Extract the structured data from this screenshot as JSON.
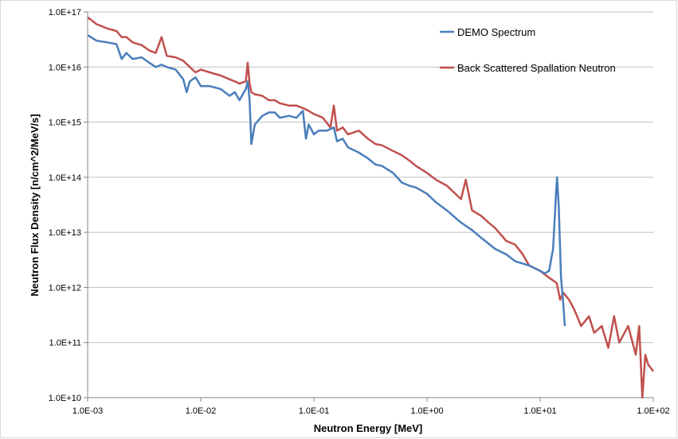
{
  "chart_data": {
    "type": "line",
    "title": "",
    "xlabel": "Neutron Energy [MeV]",
    "ylabel": "Neutron Flux Density [n/cm^2/MeV/s]",
    "x_scale": "log",
    "y_scale": "log",
    "xlim": [
      0.001,
      100
    ],
    "ylim": [
      10000000000.0,
      1e+17
    ],
    "x_tick_labels": [
      "1.0E-03",
      "1.0E-02",
      "1.0E-01",
      "1.0E+00",
      "1.0E+01",
      "1.0E+02"
    ],
    "y_tick_labels": [
      "1.0E+10",
      "1.0E+11",
      "1.0E+12",
      "1.0E+13",
      "1.0E+14",
      "1.0E+15",
      "1.0E+16",
      "1.0E+17"
    ],
    "grid": "horizontal major",
    "legend_position": "top-right",
    "series": [
      {
        "name": "DEMO Spectrum",
        "color": "#4a7ebb",
        "x": [
          0.001,
          0.0012,
          0.0015,
          0.0018,
          0.002,
          0.0022,
          0.0025,
          0.003,
          0.0035,
          0.004,
          0.0045,
          0.005,
          0.006,
          0.007,
          0.0075,
          0.008,
          0.009,
          0.01,
          0.012,
          0.015,
          0.018,
          0.02,
          0.022,
          0.025,
          0.026,
          0.027,
          0.028,
          0.03,
          0.035,
          0.04,
          0.045,
          0.05,
          0.06,
          0.07,
          0.08,
          0.085,
          0.09,
          0.1,
          0.11,
          0.13,
          0.15,
          0.16,
          0.18,
          0.2,
          0.25,
          0.3,
          0.35,
          0.4,
          0.5,
          0.6,
          0.7,
          0.8,
          1.0,
          1.2,
          1.5,
          2.0,
          2.5,
          3.0,
          4.0,
          5.0,
          6.0,
          8.0,
          10.0,
          11.0,
          12.0,
          13.0,
          13.8,
          14.1,
          14.6,
          15.3,
          16.0,
          16.5
        ],
        "values": [
          3.8e+16,
          3e+16,
          2.8e+16,
          2.6e+16,
          1.4e+16,
          1.8e+16,
          1.4e+16,
          1.5e+16,
          1.2e+16,
          1e+16,
          1.1e+16,
          1e+16,
          9000000000000000.0,
          6000000000000000.0,
          3500000000000000.0,
          5500000000000000.0,
          6500000000000000.0,
          4500000000000000.0,
          4500000000000000.0,
          4000000000000000.0,
          3000000000000000.0,
          3500000000000000.0,
          2500000000000000.0,
          4000000000000000.0,
          5500000000000000.0,
          2500000000000000.0,
          400000000000000.0,
          900000000000000.0,
          1300000000000000.0,
          1500000000000000.0,
          1500000000000000.0,
          1200000000000000.0,
          1300000000000000.0,
          1200000000000000.0,
          1600000000000000.0,
          500000000000000.0,
          900000000000000.0,
          600000000000000.0,
          700000000000000.0,
          700000000000000.0,
          800000000000000.0,
          450000000000000.0,
          500000000000000.0,
          350000000000000.0,
          280000000000000.0,
          220000000000000.0,
          170000000000000.0,
          160000000000000.0,
          120000000000000.0,
          80000000000000.0,
          70000000000000.0,
          65000000000000.0,
          50000000000000.0,
          35000000000000.0,
          25000000000000.0,
          15000000000000.0,
          11000000000000.0,
          8000000000000.0,
          5000000000000.0,
          4000000000000.0,
          3000000000000.0,
          2500000000000.0,
          2000000000000.0,
          1800000000000.0,
          2000000000000.0,
          5000000000000.0,
          50000000000000.0,
          100000000000000.0,
          30000000000000.0,
          1500000000000.0,
          500000000000.0,
          200000000000.0
        ]
      },
      {
        "name": "Back Scattered Spallation Neutron",
        "color": "#c0504d",
        "x": [
          0.001,
          0.0012,
          0.0015,
          0.0018,
          0.002,
          0.0022,
          0.0025,
          0.003,
          0.0035,
          0.004,
          0.0045,
          0.005,
          0.006,
          0.007,
          0.008,
          0.009,
          0.01,
          0.012,
          0.015,
          0.018,
          0.02,
          0.022,
          0.025,
          0.026,
          0.027,
          0.028,
          0.03,
          0.035,
          0.04,
          0.045,
          0.05,
          0.06,
          0.07,
          0.08,
          0.09,
          0.1,
          0.11,
          0.12,
          0.14,
          0.15,
          0.16,
          0.18,
          0.2,
          0.25,
          0.3,
          0.35,
          0.4,
          0.5,
          0.6,
          0.7,
          0.8,
          1.0,
          1.2,
          1.5,
          2.0,
          2.2,
          2.5,
          3.0,
          3.5,
          4.0,
          5.0,
          6.0,
          7.0,
          8.0,
          10.0,
          12.0,
          14.0,
          15.0,
          16.0,
          18.0,
          20.0,
          23.0,
          27.0,
          30.0,
          35.0,
          40.0,
          45.0,
          50.0,
          60.0,
          70.0,
          75.0,
          80.0,
          85.0,
          90.0,
          100.0
        ],
        "values": [
          8e+16,
          6e+16,
          5e+16,
          4.5e+16,
          3.5e+16,
          3.5e+16,
          2.8e+16,
          2.5e+16,
          2e+16,
          1.8e+16,
          3.5e+16,
          1.6e+16,
          1.5e+16,
          1.3e+16,
          1e+16,
          8000000000000000.0,
          9000000000000000.0,
          8000000000000000.0,
          7000000000000000.0,
          6000000000000000.0,
          5500000000000000.0,
          5000000000000000.0,
          5500000000000000.0,
          1.2e+16,
          5000000000000000.0,
          3500000000000000.0,
          3200000000000000.0,
          3000000000000000.0,
          2500000000000000.0,
          2500000000000000.0,
          2200000000000000.0,
          2000000000000000.0,
          2000000000000000.0,
          1800000000000000.0,
          1600000000000000.0,
          1400000000000000.0,
          1300000000000000.0,
          1200000000000000.0,
          800000000000000.0,
          2000000000000000.0,
          700000000000000.0,
          800000000000000.0,
          600000000000000.0,
          700000000000000.0,
          500000000000000.0,
          400000000000000.0,
          380000000000000.0,
          300000000000000.0,
          250000000000000.0,
          200000000000000.0,
          160000000000000.0,
          120000000000000.0,
          90000000000000.0,
          70000000000000.0,
          40000000000000.0,
          90000000000000.0,
          25000000000000.0,
          20000000000000.0,
          15000000000000.0,
          12000000000000.0,
          7000000000000.0,
          6000000000000.0,
          4000000000000.0,
          2500000000000.0,
          2000000000000.0,
          1500000000000.0,
          1200000000000.0,
          600000000000.0,
          800000000000.0,
          600000000000.0,
          400000000000.0,
          200000000000.0,
          300000000000.0,
          150000000000.0,
          200000000000.0,
          80000000000.0,
          300000000000.0,
          100000000000.0,
          200000000000.0,
          60000000000.0,
          200000000000.0,
          10000000000.0,
          60000000000.0,
          40000000000.0,
          30000000000.0
        ]
      }
    ]
  }
}
